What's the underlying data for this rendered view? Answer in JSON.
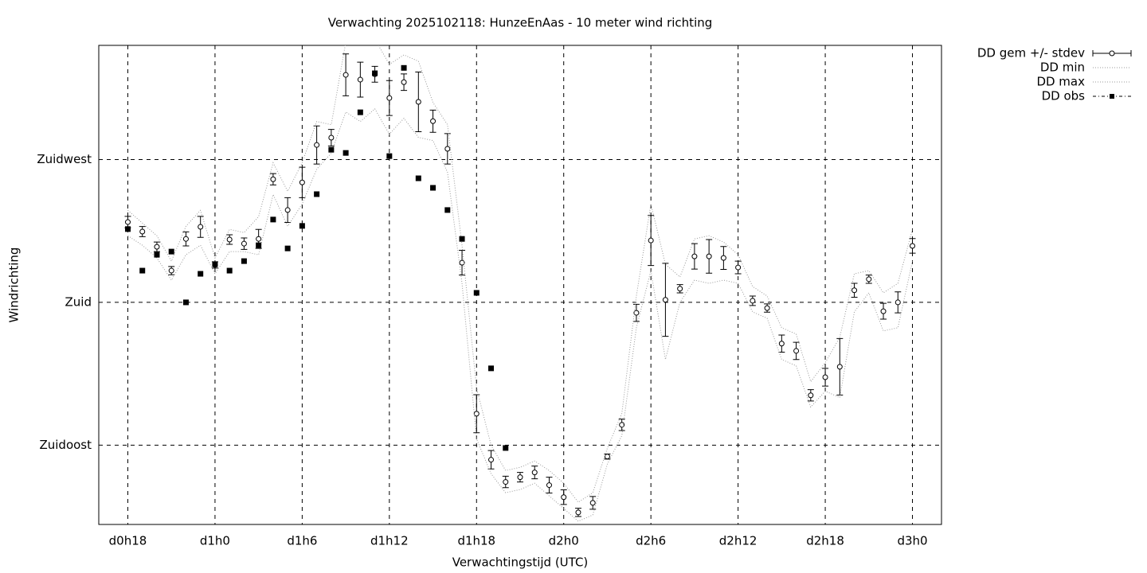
{
  "chart_data": {
    "type": "line",
    "title": "Verwachting 2025102118: HunzeEnAas - 10 meter wind richting",
    "x_label": "Verwachtingstijd (UTC)",
    "y_label": "Windrichting",
    "x": [
      18,
      19,
      20,
      21,
      22,
      23,
      24,
      25,
      26,
      27,
      28,
      29,
      30,
      31,
      32,
      33,
      34,
      35,
      36,
      37,
      38,
      39,
      40,
      41,
      42,
      43,
      44,
      45,
      46,
      47,
      48,
      49,
      50,
      51,
      52,
      53,
      54,
      55,
      56,
      57,
      58,
      59,
      60,
      61,
      62,
      63,
      64,
      65,
      66,
      67,
      68,
      69,
      70,
      71,
      72
    ],
    "xlim": [
      16,
      74
    ],
    "xticks": [
      {
        "value": 18,
        "label": "d0h18"
      },
      {
        "value": 24,
        "label": "d1h0"
      },
      {
        "value": 30,
        "label": "d1h6"
      },
      {
        "value": 36,
        "label": "d1h12"
      },
      {
        "value": 42,
        "label": "d1h18"
      },
      {
        "value": 48,
        "label": "d2h0"
      },
      {
        "value": 54,
        "label": "d2h6"
      },
      {
        "value": 60,
        "label": "d2h12"
      },
      {
        "value": 66,
        "label": "d2h18"
      },
      {
        "value": 72,
        "label": "d3h0"
      }
    ],
    "ylim": [
      110,
      261
    ],
    "yticks": [
      {
        "value": 135,
        "label": "Zuidoost"
      },
      {
        "value": 180,
        "label": "Zuid"
      },
      {
        "value": 225,
        "label": "Zuidwest"
      }
    ],
    "grid": true,
    "legend": "outside-right",
    "series": [
      {
        "name": "DD gem +/- stdev",
        "style": "errorbar",
        "color": "#000000",
        "values": [
          205.3,
          202.3,
          197.5,
          190.0,
          200.0,
          203.8,
          191.8,
          199.8,
          198.5,
          200.0,
          218.8,
          209.1,
          217.8,
          229.6,
          231.9,
          251.7,
          250.2,
          251.9,
          244.4,
          249.4,
          243.2,
          237.1,
          228.4,
          192.5,
          144.9,
          130.4,
          123.4,
          124.9,
          126.4,
          122.4,
          118.6,
          113.8,
          116.8,
          131.4,
          141.4,
          176.7,
          199.5,
          180.8,
          184.3,
          194.5,
          194.5,
          194.0,
          191.0,
          180.5,
          178.2,
          167.0,
          164.7,
          150.7,
          156.4,
          159.7,
          183.8,
          187.3,
          177.2,
          180.0,
          197.8
        ],
        "errors": [
          1.8,
          1.6,
          1.5,
          1.3,
          2.2,
          3.3,
          1.0,
          1.5,
          1.8,
          3.0,
          1.8,
          3.9,
          4.8,
          6.0,
          2.6,
          6.6,
          5.5,
          2.5,
          5.5,
          2.6,
          9.4,
          3.5,
          4.8,
          3.9,
          6.0,
          2.9,
          1.8,
          1.5,
          2.0,
          2.5,
          2.3,
          1.3,
          2.0,
          0.8,
          1.8,
          2.7,
          7.9,
          11.5,
          1.3,
          4.0,
          5.3,
          3.6,
          2.0,
          1.5,
          1.3,
          2.7,
          2.7,
          1.8,
          2.8,
          8.9,
          2.2,
          1.3,
          2.5,
          3.3,
          2.3
        ]
      },
      {
        "name": "DD min",
        "style": "dotted",
        "color": "#999999",
        "values": [
          201,
          198,
          194,
          187,
          195,
          198,
          189,
          196,
          196,
          195,
          214,
          204,
          211,
          222,
          227,
          240,
          237,
          241,
          233,
          238,
          232,
          231,
          221,
          186,
          137,
          126,
          120,
          121,
          123,
          119,
          115,
          111,
          113,
          129,
          138,
          172,
          190,
          162,
          180,
          187,
          186,
          187,
          186,
          177,
          175,
          162,
          160,
          147,
          152,
          150,
          177,
          183,
          171,
          172,
          193
        ]
      },
      {
        "name": "DD max",
        "style": "dotted",
        "color": "#999999",
        "values": [
          209,
          205,
          201,
          193,
          204,
          209,
          194,
          203,
          202,
          207,
          224,
          215,
          224,
          237,
          236,
          262,
          262,
          263,
          255,
          258,
          256,
          243,
          236,
          198,
          153,
          135,
          127,
          128,
          130,
          127,
          123,
          117,
          120,
          134,
          145,
          182,
          211,
          192,
          188,
          200,
          201,
          199,
          195,
          185,
          182,
          172,
          170,
          155,
          161,
          169,
          189,
          190,
          183,
          186,
          203
        ]
      },
      {
        "name": "DD obs",
        "style": "squares",
        "color": "#000000",
        "values": [
          203.1,
          190.0,
          195.0,
          196.0,
          180.0,
          189.0,
          192.0,
          190.0,
          193.0,
          198.0,
          206.1,
          197.0,
          204.1,
          214.1,
          228.1,
          227.1,
          239.9,
          252.2,
          226.1,
          253.9,
          219.1,
          216.1,
          209.1,
          200.0,
          183.0,
          159.2,
          134.1,
          null,
          null,
          null,
          null,
          null,
          null,
          null,
          null,
          null,
          null,
          null,
          null,
          null,
          null,
          null,
          null,
          null,
          null,
          null,
          null,
          null,
          null,
          null,
          null,
          null,
          null,
          null,
          null
        ]
      }
    ]
  }
}
